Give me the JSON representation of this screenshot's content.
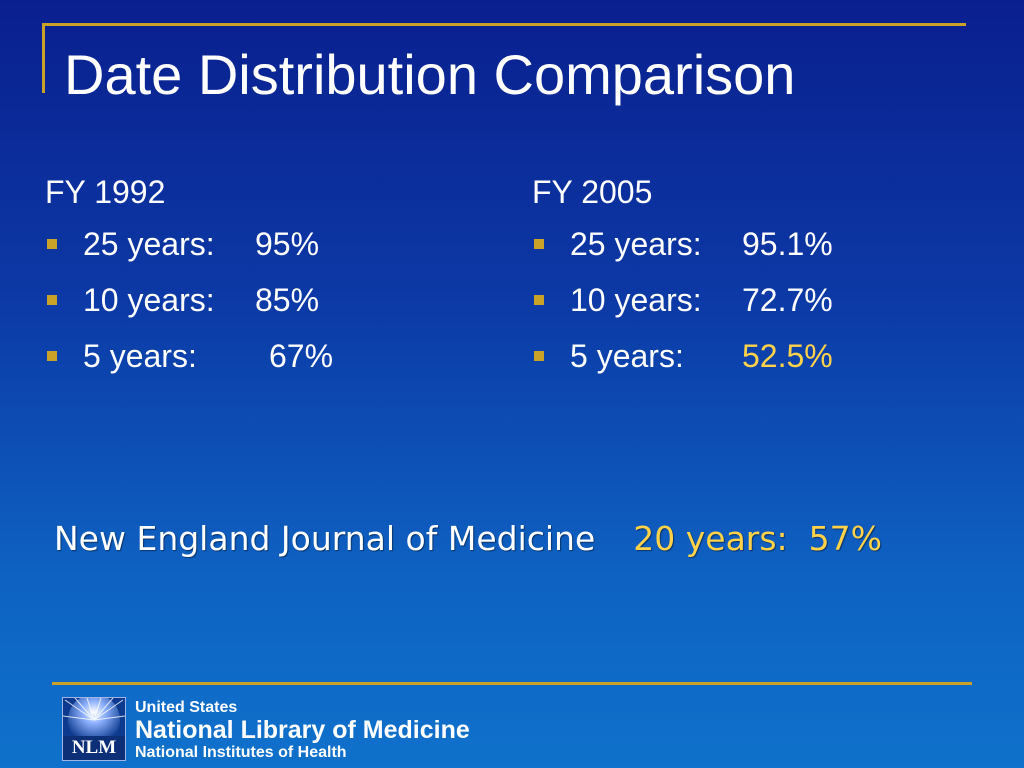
{
  "slide": {
    "title": "Date Distribution Comparison",
    "accent_color": "#c9a227",
    "highlight_color": "#ffd24a"
  },
  "left_column": {
    "heading": "FY 1992",
    "items": [
      {
        "label": "25 years:",
        "value": "95%"
      },
      {
        "label": "10 years:",
        "value": "85%"
      },
      {
        "label": "5 years:",
        "value": "67%"
      }
    ]
  },
  "right_column": {
    "heading": "FY 2005",
    "items": [
      {
        "label": "25 years:",
        "value": "95.1%"
      },
      {
        "label": "10 years:",
        "value": "72.7%"
      },
      {
        "label": "5 years:",
        "value": "52.5%"
      }
    ]
  },
  "journal": {
    "name": "New England Journal of Medicine",
    "stat": "20 years:  57%"
  },
  "footer": {
    "logo_text": "NLM",
    "line1": "United States",
    "line2": "National Library of Medicine",
    "line3": "National Institutes of Health"
  }
}
